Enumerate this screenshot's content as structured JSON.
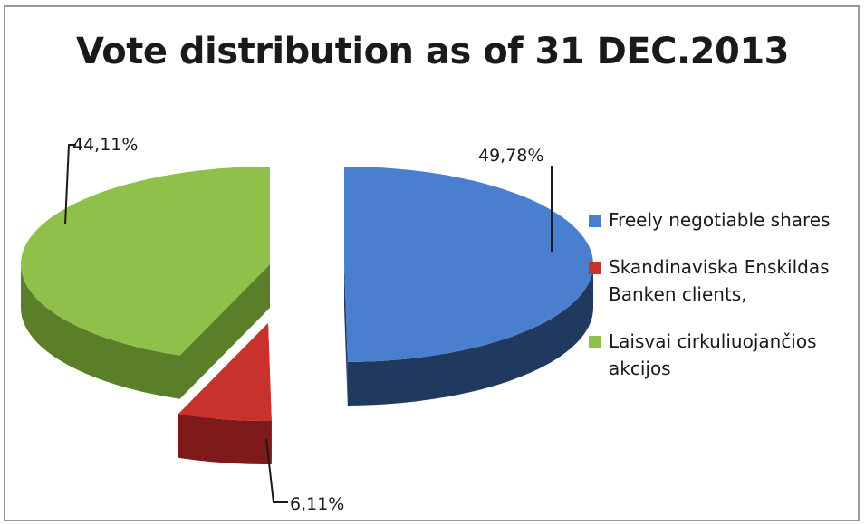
{
  "chart_data": {
    "type": "pie",
    "title": "Vote distribution as of 31 DEC.2013",
    "legend_position": "right",
    "slices": [
      {
        "label": "Freely negotiable shares",
        "value": 49.78,
        "display": "49,78%",
        "color": "#4a7fd0",
        "side_color": "#1f3a5e"
      },
      {
        "label": "Skandinaviska Enskildas Banken clients,",
        "value": 6.11,
        "display": "6,11%",
        "color": "#c8312c",
        "side_color": "#7e1a1a"
      },
      {
        "label": "Laisvai cirkuliuojančios akcijos",
        "value": 44.11,
        "display": "44,11%",
        "color": "#8fc04a",
        "side_color": "#5a7f28"
      }
    ]
  }
}
